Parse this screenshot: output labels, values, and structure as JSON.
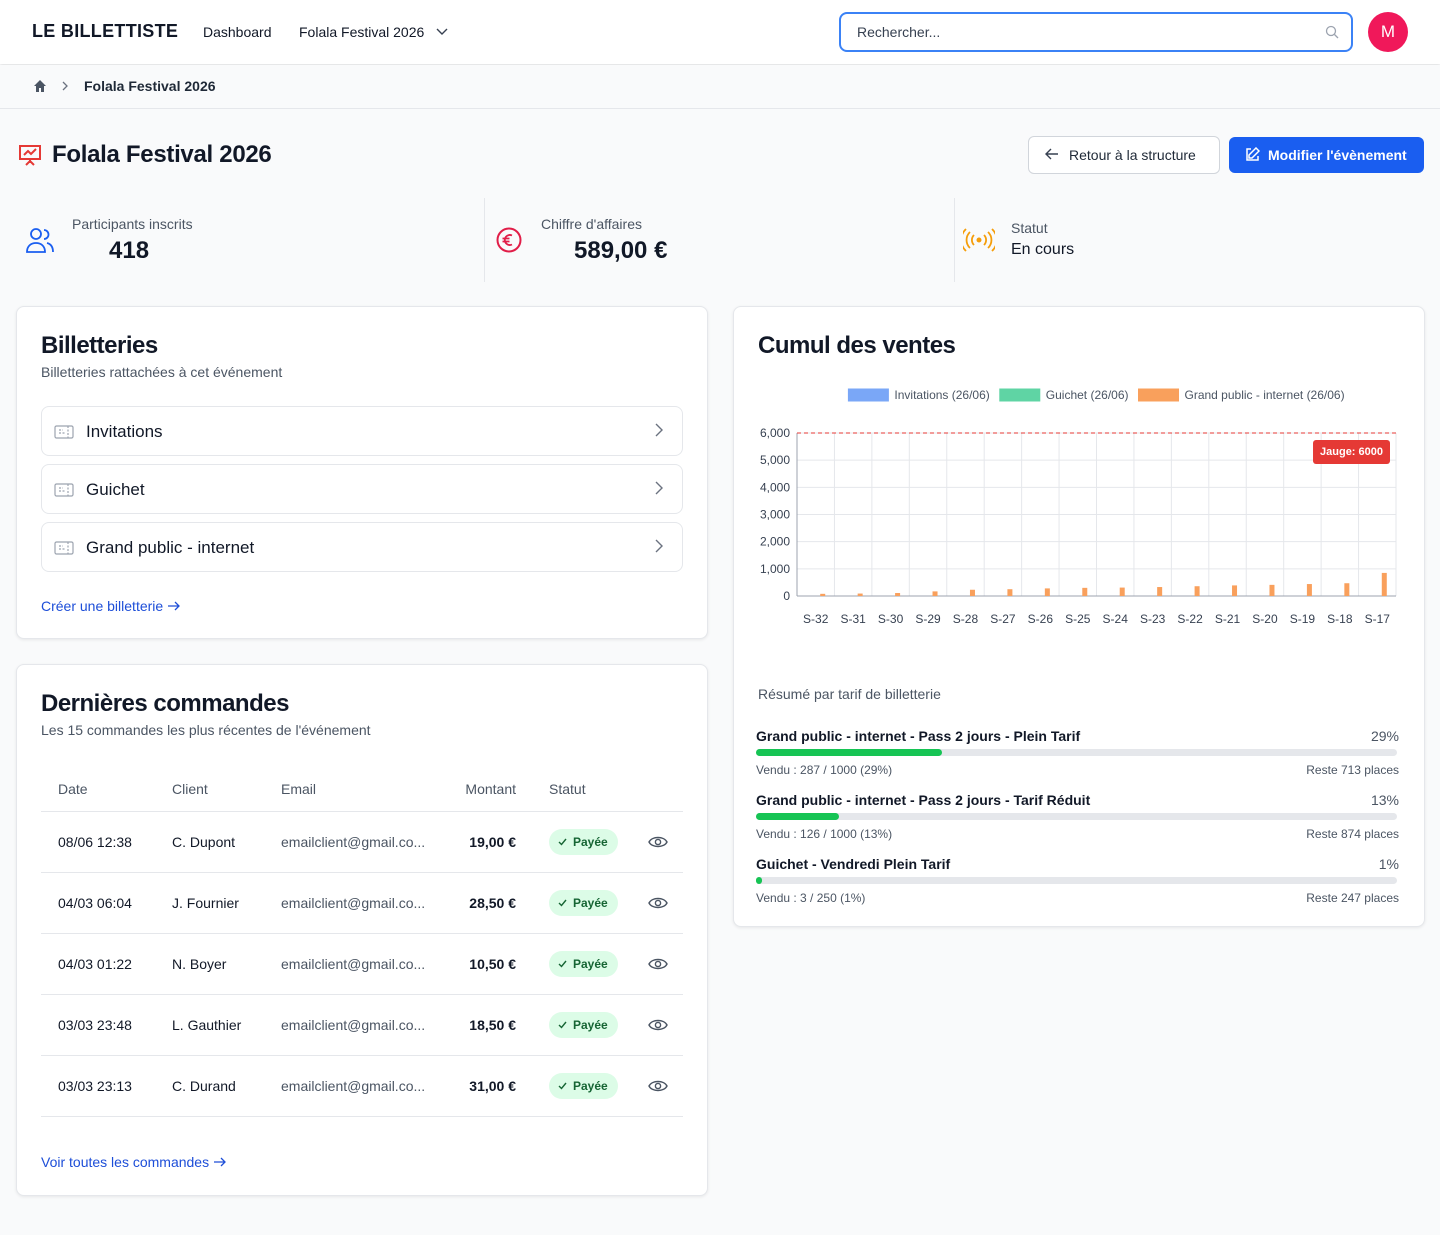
{
  "header": {
    "brand": "LE BILLETTISTE",
    "nav": [
      "Dashboard",
      "Folala Festival 2026"
    ],
    "search_placeholder": "Rechercher...",
    "avatar": "M"
  },
  "breadcrumb": {
    "current": "Folala Festival 2026"
  },
  "page": {
    "title": "Folala Festival 2026",
    "back_button": "Retour à la structure",
    "edit_button": "Modifier l'évènement"
  },
  "stats": [
    {
      "label": "Participants inscrits",
      "value": "418"
    },
    {
      "label": "Chiffre d'affaires",
      "value": "589,00 €"
    },
    {
      "label": "Statut",
      "value": "En cours"
    }
  ],
  "billetteries": {
    "title": "Billetteries",
    "subtitle": "Billetteries rattachées à cet événement",
    "items": [
      "Invitations",
      "Guichet",
      "Grand public - internet"
    ],
    "link": "Créer une billetterie"
  },
  "chart": {
    "type": "bar",
    "title": "Cumul des ventes",
    "categories": [
      "S-32",
      "S-31",
      "S-30",
      "S-29",
      "S-28",
      "S-27",
      "S-26",
      "S-25",
      "S-24",
      "S-23",
      "S-22",
      "S-21",
      "S-20",
      "S-19",
      "S-18",
      "S-17"
    ],
    "series": [
      {
        "name": "Invitations (26/06)",
        "color": "#7aa7f7",
        "values": [
          0,
          0,
          0,
          0,
          0,
          0,
          0,
          0,
          0,
          0,
          0,
          0,
          0,
          0,
          0,
          0
        ]
      },
      {
        "name": "Guichet (26/06)",
        "color": "#5fd4a4",
        "values": [
          0,
          0,
          0,
          0,
          0,
          0,
          0,
          0,
          0,
          0,
          0,
          0,
          0,
          0,
          0,
          0
        ]
      },
      {
        "name": "Grand public - internet (26/06)",
        "color": "#f9a05c",
        "values": [
          80,
          90,
          110,
          170,
          230,
          250,
          280,
          300,
          310,
          330,
          360,
          390,
          410,
          440,
          470,
          850
        ]
      }
    ],
    "ylim": [
      0,
      6000
    ],
    "yticks": [
      0,
      {
        "value": 1000,
        "label": "1,000"
      },
      {
        "value": 2000,
        "label": "2,000"
      },
      {
        "value": 3000,
        "label": "3,000"
      },
      {
        "value": 4000,
        "label": "4,000"
      },
      {
        "value": 5000,
        "label": "5,000"
      },
      {
        "value": 6000,
        "label": "6,000"
      }
    ],
    "grid": true,
    "threshold": {
      "value": 6000,
      "label": "Jauge: 6000",
      "color": "#e53935"
    }
  },
  "tarifs": {
    "title": "Résumé par tarif de billetterie",
    "items": [
      {
        "name": "Grand public - internet - Pass 2 jours - Plein Tarif",
        "percent": 29,
        "percent_label": "29%",
        "sold": "Vendu : 287 / 1000 (29%)",
        "remaining": "Reste 713 places"
      },
      {
        "name": "Grand public - internet - Pass 2 jours - Tarif Réduit",
        "percent": 13,
        "percent_label": "13%",
        "sold": "Vendu : 126 / 1000 (13%)",
        "remaining": "Reste 874 places"
      },
      {
        "name": "Guichet - Vendredi Plein Tarif",
        "percent": 1,
        "percent_label": "1%",
        "sold": "Vendu : 3 / 250 (1%)",
        "remaining": "Reste 247 places"
      }
    ]
  },
  "orders": {
    "title": "Dernières commandes",
    "subtitle": "Les 15 commandes les plus récentes de l'événement",
    "columns": [
      "Date",
      "Client",
      "Email",
      "Montant",
      "Statut"
    ],
    "rows": [
      [
        "08/06 12:38",
        "C. Dupont",
        "emailclient@gmail.co...",
        "19,00 €",
        "Payée"
      ],
      [
        "04/03 06:04",
        "J. Fournier",
        "emailclient@gmail.co...",
        "28,50 €",
        "Payée"
      ],
      [
        "04/03 01:22",
        "N. Boyer",
        "emailclient@gmail.co...",
        "10,50 €",
        "Payée"
      ],
      [
        "03/03 23:48",
        "L. Gauthier",
        "emailclient@gmail.co...",
        "18,50 €",
        "Payée"
      ],
      [
        "03/03 23:13",
        "C. Durand",
        "emailclient@gmail.co...",
        "31,00 €",
        "Payée"
      ]
    ],
    "link": "Voir toutes les commandes"
  }
}
